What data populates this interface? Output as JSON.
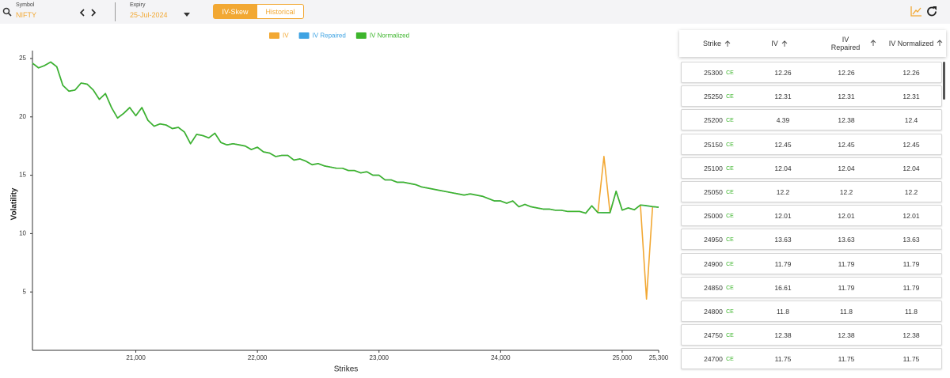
{
  "header": {
    "symbol_label": "Symbol",
    "symbol": "NIFTY",
    "expiry_label": "Expiry",
    "expiry": "25-Jul-2024",
    "tabs": [
      "IV-Skew",
      "Historical"
    ]
  },
  "chart_data": {
    "type": "line",
    "x_label": "Strikes",
    "y_label": "Volatility",
    "x": [
      20150,
      20200,
      20250,
      20300,
      20350,
      20400,
      20450,
      20500,
      20550,
      20600,
      20650,
      20700,
      20750,
      20800,
      20850,
      20900,
      20950,
      21000,
      21050,
      21100,
      21150,
      21200,
      21250,
      21300,
      21350,
      21400,
      21450,
      21500,
      21550,
      21600,
      21650,
      21700,
      21750,
      21800,
      21850,
      21900,
      21950,
      22000,
      22050,
      22100,
      22150,
      22200,
      22250,
      22300,
      22350,
      22400,
      22450,
      22500,
      22550,
      22600,
      22650,
      22700,
      22750,
      22800,
      22850,
      22900,
      22950,
      23000,
      23050,
      23100,
      23150,
      23200,
      23250,
      23300,
      23350,
      23400,
      23450,
      23500,
      23550,
      23600,
      23650,
      23700,
      23750,
      23800,
      23850,
      23900,
      23950,
      24000,
      24050,
      24100,
      24150,
      24200,
      24250,
      24300,
      24350,
      24400,
      24450,
      24500,
      24550,
      24600,
      24650,
      24700,
      24750,
      24800,
      24850,
      24900,
      24950,
      25000,
      25050,
      25100,
      25150,
      25200,
      25250,
      25300
    ],
    "series": [
      {
        "name": "IV",
        "color": "#f2a833",
        "values": [
          24.6,
          24.2,
          24.4,
          24.7,
          24.3,
          22.7,
          22.2,
          22.3,
          22.9,
          22.8,
          22.3,
          21.5,
          22,
          20.8,
          19.9,
          20.3,
          20.8,
          20.1,
          20.8,
          19.7,
          19.2,
          19.4,
          19.3,
          19,
          19.1,
          18.7,
          17.7,
          18.5,
          18.4,
          18.2,
          18.6,
          17.8,
          17.6,
          17.7,
          17.6,
          17.5,
          17.2,
          17.4,
          17,
          16.9,
          16.6,
          16.7,
          16.7,
          16.3,
          16.4,
          16.2,
          15.9,
          16,
          15.8,
          15.7,
          15.6,
          15.6,
          15.4,
          15.4,
          15.2,
          15.3,
          15,
          15,
          14.6,
          14.6,
          14.4,
          14.4,
          14.3,
          14.2,
          14,
          13.9,
          13.8,
          13.7,
          13.6,
          13.5,
          13.4,
          13.3,
          13.4,
          13.3,
          13.2,
          13,
          12.8,
          12.8,
          12.6,
          12.8,
          12.3,
          12.5,
          12.3,
          12.2,
          12.1,
          12.1,
          12,
          12,
          11.9,
          11.9,
          11.9,
          11.75,
          12.38,
          11.8,
          16.61,
          11.79,
          13.63,
          12.01,
          12.2,
          12.04,
          12.45,
          4.39,
          12.31,
          12.26
        ]
      },
      {
        "name": "IV Repaired",
        "color": "#3ea3e3",
        "values": [
          24.6,
          24.2,
          24.4,
          24.7,
          24.3,
          22.7,
          22.2,
          22.3,
          22.9,
          22.8,
          22.3,
          21.5,
          22,
          20.8,
          19.9,
          20.3,
          20.8,
          20.1,
          20.8,
          19.7,
          19.2,
          19.4,
          19.3,
          19,
          19.1,
          18.7,
          17.7,
          18.5,
          18.4,
          18.2,
          18.6,
          17.8,
          17.6,
          17.7,
          17.6,
          17.5,
          17.2,
          17.4,
          17,
          16.9,
          16.6,
          16.7,
          16.7,
          16.3,
          16.4,
          16.2,
          15.9,
          16,
          15.8,
          15.7,
          15.6,
          15.6,
          15.4,
          15.4,
          15.2,
          15.3,
          15,
          15,
          14.6,
          14.6,
          14.4,
          14.4,
          14.3,
          14.2,
          14,
          13.9,
          13.8,
          13.7,
          13.6,
          13.5,
          13.4,
          13.3,
          13.4,
          13.3,
          13.2,
          13,
          12.8,
          12.8,
          12.6,
          12.8,
          12.3,
          12.5,
          12.3,
          12.2,
          12.1,
          12.1,
          12,
          12,
          11.9,
          11.9,
          11.9,
          11.75,
          12.38,
          11.8,
          11.79,
          11.79,
          13.63,
          12.01,
          12.2,
          12.04,
          12.45,
          12.38,
          12.31,
          12.26
        ]
      },
      {
        "name": "IV Normalized",
        "color": "#3db52c",
        "values": [
          24.6,
          24.2,
          24.4,
          24.7,
          24.3,
          22.7,
          22.2,
          22.3,
          22.9,
          22.8,
          22.3,
          21.5,
          22,
          20.8,
          19.9,
          20.3,
          20.8,
          20.1,
          20.8,
          19.7,
          19.2,
          19.4,
          19.3,
          19,
          19.1,
          18.7,
          17.7,
          18.5,
          18.4,
          18.2,
          18.6,
          17.8,
          17.6,
          17.7,
          17.6,
          17.5,
          17.2,
          17.4,
          17,
          16.9,
          16.6,
          16.7,
          16.7,
          16.3,
          16.4,
          16.2,
          15.9,
          16,
          15.8,
          15.7,
          15.6,
          15.6,
          15.4,
          15.4,
          15.2,
          15.3,
          15,
          15,
          14.6,
          14.6,
          14.4,
          14.4,
          14.3,
          14.2,
          14,
          13.9,
          13.8,
          13.7,
          13.6,
          13.5,
          13.4,
          13.3,
          13.4,
          13.3,
          13.2,
          13,
          12.8,
          12.8,
          12.6,
          12.8,
          12.3,
          12.5,
          12.3,
          12.2,
          12.1,
          12.1,
          12,
          12,
          11.9,
          11.9,
          11.9,
          11.75,
          12.38,
          11.8,
          11.79,
          11.79,
          13.63,
          12.01,
          12.2,
          12.04,
          12.45,
          12.4,
          12.31,
          12.26
        ]
      }
    ],
    "xlim": [
      20150,
      25300
    ],
    "xticks": [
      {
        "value": 21000,
        "label": "21,000"
      },
      {
        "value": 22000,
        "label": "22,000"
      },
      {
        "value": 23000,
        "label": "23,000"
      },
      {
        "value": 24000,
        "label": "24,000"
      },
      {
        "value": 25000,
        "label": "25,000"
      },
      {
        "value": 25300,
        "label": "25,300"
      }
    ],
    "ylim": [
      0,
      25
    ],
    "yticks": [
      5,
      10,
      15,
      20,
      25
    ],
    "grid": false,
    "legend": "top"
  },
  "table": {
    "columns": [
      "Strike",
      "IV",
      "IV Repaired",
      "IV Normalized"
    ],
    "rows": [
      {
        "strike": 25300,
        "type": "CE",
        "iv": 12.26,
        "iv_repaired": 12.26,
        "iv_normalized": 12.26
      },
      {
        "strike": 25250,
        "type": "CE",
        "iv": 12.31,
        "iv_repaired": 12.31,
        "iv_normalized": 12.31
      },
      {
        "strike": 25200,
        "type": "CE",
        "iv": 4.39,
        "iv_repaired": 12.38,
        "iv_normalized": 12.4
      },
      {
        "strike": 25150,
        "type": "CE",
        "iv": 12.45,
        "iv_repaired": 12.45,
        "iv_normalized": 12.45
      },
      {
        "strike": 25100,
        "type": "CE",
        "iv": 12.04,
        "iv_repaired": 12.04,
        "iv_normalized": 12.04
      },
      {
        "strike": 25050,
        "type": "CE",
        "iv": 12.2,
        "iv_repaired": 12.2,
        "iv_normalized": 12.2
      },
      {
        "strike": 25000,
        "type": "CE",
        "iv": 12.01,
        "iv_repaired": 12.01,
        "iv_normalized": 12.01
      },
      {
        "strike": 24950,
        "type": "CE",
        "iv": 13.63,
        "iv_repaired": 13.63,
        "iv_normalized": 13.63
      },
      {
        "strike": 24900,
        "type": "CE",
        "iv": 11.79,
        "iv_repaired": 11.79,
        "iv_normalized": 11.79
      },
      {
        "strike": 24850,
        "type": "CE",
        "iv": 16.61,
        "iv_repaired": 11.79,
        "iv_normalized": 11.79
      },
      {
        "strike": 24800,
        "type": "CE",
        "iv": 11.8,
        "iv_repaired": 11.8,
        "iv_normalized": 11.8
      },
      {
        "strike": 24750,
        "type": "CE",
        "iv": 12.38,
        "iv_repaired": 12.38,
        "iv_normalized": 12.38
      },
      {
        "strike": 24700,
        "type": "CE",
        "iv": 11.75,
        "iv_repaired": 11.75,
        "iv_normalized": 11.75
      }
    ]
  }
}
